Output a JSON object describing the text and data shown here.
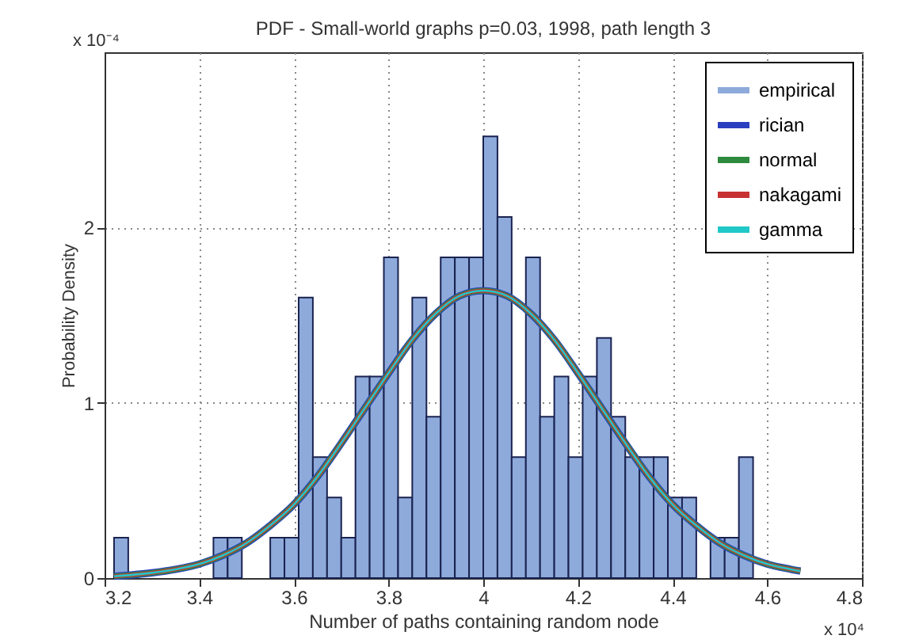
{
  "chart_data": {
    "type": "histogram",
    "title": "PDF - Small-world graphs p=0.03, 1998, path length 3",
    "xlabel": "Number of paths containing random node",
    "ylabel": "Probability Density",
    "annotations": [
      "x 10⁻⁴",
      "x 10⁴"
    ],
    "bins": [
      3.22,
      3.25,
      3.28,
      3.31,
      3.34,
      3.37,
      3.4,
      3.43,
      3.46,
      3.49,
      3.52,
      3.55,
      3.58,
      3.61,
      3.64,
      3.67,
      3.7,
      3.73,
      3.76,
      3.79,
      3.82,
      3.85,
      3.88,
      3.91,
      3.94,
      3.97,
      4,
      4.03,
      4.06,
      4.09,
      4.12,
      4.15,
      4.18,
      4.21,
      4.24,
      4.27,
      4.3,
      4.33,
      4.36,
      4.39,
      4.42,
      4.45,
      4.48,
      4.51,
      4.54,
      4.57
    ],
    "series": [
      {
        "name": "empirical",
        "color": "#8eaadb",
        "values": [
          0.23,
          0,
          0,
          0,
          0,
          0,
          0,
          0.23,
          0.23,
          0,
          0,
          0.23,
          0.23,
          1.6,
          0.69,
          0.46,
          0.23,
          1.15,
          1.15,
          1.83,
          0.46,
          1.6,
          0.92,
          1.83,
          1.83,
          1.83,
          2.52,
          2.06,
          0.69,
          1.83,
          0.92,
          1.15,
          0.69,
          1.15,
          1.37,
          0.92,
          0.69,
          0.69,
          0.69,
          0.46,
          0.46,
          0,
          0.23,
          0.23,
          0.69
        ]
      },
      {
        "name": "rician",
        "type": "line",
        "color": "#2a3fbf",
        "x": [
          3.22,
          3.3,
          3.35,
          3.4,
          3.45,
          3.5,
          3.55,
          3.6,
          3.65,
          3.7,
          3.75,
          3.8,
          3.85,
          3.9,
          3.95,
          4,
          4.05,
          4.1,
          4.15,
          4.2,
          4.25,
          4.3,
          4.35,
          4.4,
          4.45,
          4.5,
          4.55,
          4.6,
          4.65,
          4.67
        ],
        "values": [
          0.01,
          0.03,
          0.05,
          0.08,
          0.13,
          0.2,
          0.3,
          0.42,
          0.58,
          0.77,
          0.97,
          1.17,
          1.36,
          1.51,
          1.61,
          1.64,
          1.61,
          1.51,
          1.36,
          1.17,
          0.97,
          0.77,
          0.58,
          0.42,
          0.3,
          0.2,
          0.13,
          0.08,
          0.05,
          0.04
        ]
      },
      {
        "name": "normal",
        "type": "line",
        "color": "#2e8b3e",
        "x": [
          3.22,
          3.3,
          3.35,
          3.4,
          3.45,
          3.5,
          3.55,
          3.6,
          3.65,
          3.7,
          3.75,
          3.8,
          3.85,
          3.9,
          3.95,
          4,
          4.05,
          4.1,
          4.15,
          4.2,
          4.25,
          4.3,
          4.35,
          4.4,
          4.45,
          4.5,
          4.55,
          4.6,
          4.65,
          4.67
        ],
        "values": [
          0.01,
          0.03,
          0.05,
          0.08,
          0.13,
          0.2,
          0.3,
          0.42,
          0.58,
          0.77,
          0.97,
          1.17,
          1.36,
          1.51,
          1.61,
          1.64,
          1.61,
          1.51,
          1.36,
          1.17,
          0.97,
          0.77,
          0.58,
          0.42,
          0.3,
          0.2,
          0.13,
          0.08,
          0.05,
          0.04
        ]
      },
      {
        "name": "nakagami",
        "type": "line",
        "color": "#c83232",
        "x": [
          3.22,
          3.3,
          3.35,
          3.4,
          3.45,
          3.5,
          3.55,
          3.6,
          3.65,
          3.7,
          3.75,
          3.8,
          3.85,
          3.9,
          3.95,
          4,
          4.05,
          4.1,
          4.15,
          4.2,
          4.25,
          4.3,
          4.35,
          4.4,
          4.45,
          4.5,
          4.55,
          4.6,
          4.65,
          4.67
        ],
        "values": [
          0.01,
          0.03,
          0.05,
          0.08,
          0.13,
          0.2,
          0.3,
          0.42,
          0.58,
          0.77,
          0.97,
          1.17,
          1.36,
          1.51,
          1.61,
          1.64,
          1.61,
          1.51,
          1.36,
          1.17,
          0.97,
          0.77,
          0.58,
          0.42,
          0.3,
          0.2,
          0.13,
          0.08,
          0.05,
          0.04
        ]
      },
      {
        "name": "gamma",
        "type": "line",
        "color": "#20c8c8",
        "x": [
          3.22,
          3.3,
          3.35,
          3.4,
          3.45,
          3.5,
          3.55,
          3.6,
          3.65,
          3.7,
          3.75,
          3.8,
          3.85,
          3.9,
          3.95,
          4,
          4.05,
          4.1,
          4.15,
          4.2,
          4.25,
          4.3,
          4.35,
          4.4,
          4.45,
          4.5,
          4.55,
          4.6,
          4.65,
          4.67
        ],
        "values": [
          0.01,
          0.03,
          0.05,
          0.08,
          0.13,
          0.2,
          0.3,
          0.42,
          0.58,
          0.77,
          0.97,
          1.17,
          1.36,
          1.51,
          1.61,
          1.64,
          1.61,
          1.51,
          1.36,
          1.17,
          0.97,
          0.77,
          0.58,
          0.42,
          0.3,
          0.2,
          0.13,
          0.08,
          0.05,
          0.04
        ]
      }
    ],
    "xlim": [
      3.2,
      4.8
    ],
    "xticks": [
      3.2,
      3.4,
      3.6,
      3.8,
      4,
      4.2,
      4.4,
      4.6,
      4.8
    ],
    "ylim": [
      0,
      3
    ],
    "yticks": [
      0,
      1,
      2
    ],
    "grid": true,
    "legend": "top right"
  }
}
